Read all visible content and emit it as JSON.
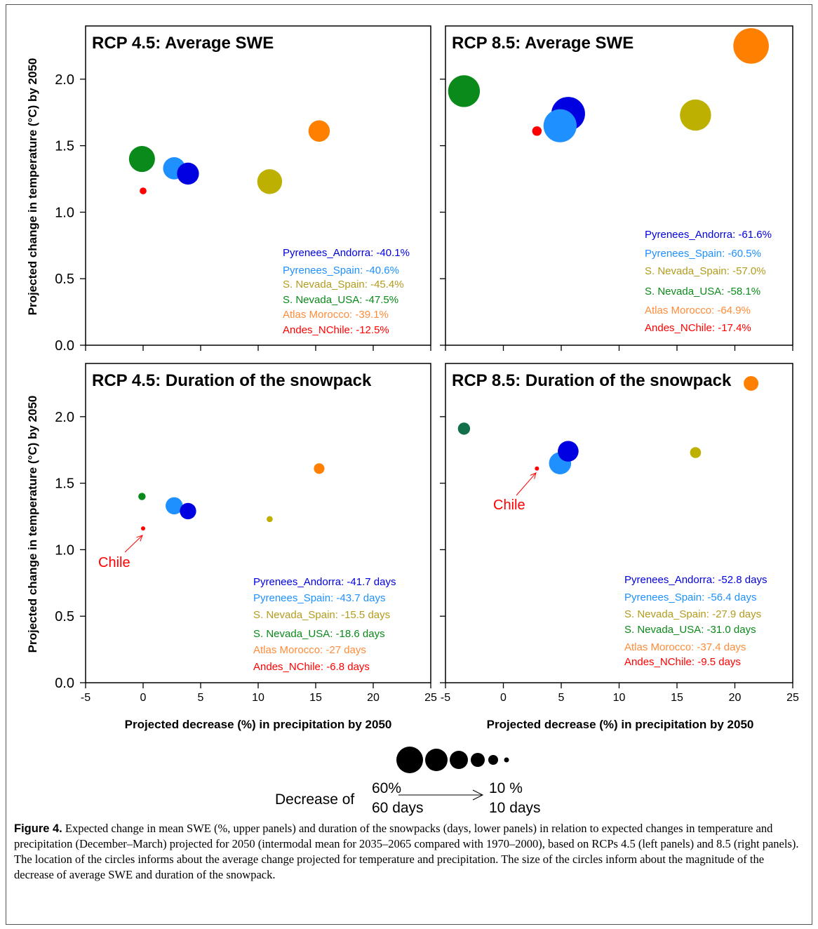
{
  "figure": {
    "y_axis_label": "Projected change in temperature (°C) by 2050",
    "x_axis_label": "Projected decrease (%) in precipitation by 2050",
    "size_legend": {
      "prefix": "Decrease of",
      "big_pct": "60%",
      "big_days": "60 days",
      "small_pct": "10 %",
      "small_days": "10 days"
    },
    "colors": {
      "Pyrenees_Andorra": "#0000e0",
      "Pyrenees_Spain": "#1e90ff",
      "S. Nevada_Spain": "#bdb000",
      "S. Nevada_USA": "#0a8a1a",
      "S. Nevada_USA_dark": "#136e4a",
      "Atlas Morocco": "#ff8000",
      "Andes_NChile": "#ff0000",
      "Atlas Morocco_text": "#ff8c3a",
      "S. Nevada_Spain_text": "#b39b1e"
    }
  },
  "chart_data": [
    {
      "type": "scatter",
      "title": "RCP 4.5: Average SWE",
      "xlim": [
        -5,
        25
      ],
      "ylim": [
        0,
        2.4
      ],
      "xticks": [
        "-5",
        "0",
        "5",
        "10",
        "15",
        "20",
        "25"
      ],
      "yticks": [
        "0.0",
        "0.5",
        "1.0",
        "1.5",
        "2.0"
      ],
      "points": [
        {
          "name": "Pyrenees_Andorra",
          "x": 3.9,
          "y": 1.29,
          "size": 40.1,
          "label": "Pyrenees_Andorra: -40.1%"
        },
        {
          "name": "Pyrenees_Spain",
          "x": 2.7,
          "y": 1.33,
          "size": 40.6,
          "label": "Pyrenees_Spain: -40.6%"
        },
        {
          "name": "S. Nevada_Spain",
          "x": 11.0,
          "y": 1.23,
          "size": 45.4,
          "label": "S. Nevada_Spain: -45.4%"
        },
        {
          "name": "S. Nevada_USA",
          "x": -0.1,
          "y": 1.4,
          "size": 47.5,
          "label": "S. Nevada_USA: -47.5%"
        },
        {
          "name": "Atlas Morocco",
          "x": 15.3,
          "y": 1.61,
          "size": 39.1,
          "label": "Atlas Morocco: -39.1%"
        },
        {
          "name": "Andes_NChile",
          "x": 0.0,
          "y": 1.16,
          "size": 12.5,
          "label": "Andes_NChile: -12.5%"
        }
      ]
    },
    {
      "type": "scatter",
      "title": "RCP 8.5: Average SWE",
      "xlim": [
        -5,
        25
      ],
      "ylim": [
        0,
        2.4
      ],
      "xticks": [
        "-5",
        "0",
        "5",
        "10",
        "15",
        "20",
        "25"
      ],
      "yticks": [
        "0.0",
        "0.5",
        "1.0",
        "1.5",
        "2.0"
      ],
      "points": [
        {
          "name": "Pyrenees_Andorra",
          "x": 5.6,
          "y": 1.74,
          "size": 61.6,
          "label": "Pyrenees_Andorra: -61.6%"
        },
        {
          "name": "Pyrenees_Spain",
          "x": 4.9,
          "y": 1.65,
          "size": 60.5,
          "label": "Pyrenees_Spain: -60.5%"
        },
        {
          "name": "S. Nevada_Spain",
          "x": 16.6,
          "y": 1.73,
          "size": 57.0,
          "label": "S. Nevada_Spain: -57.0%"
        },
        {
          "name": "S. Nevada_USA",
          "x": -3.4,
          "y": 1.91,
          "size": 58.1,
          "label": "S. Nevada_USA: -58.1%"
        },
        {
          "name": "Atlas Morocco",
          "x": 21.4,
          "y": 2.25,
          "size": 64.9,
          "label": "Atlas Morocco: -64.9%"
        },
        {
          "name": "Andes_NChile",
          "x": 2.9,
          "y": 1.61,
          "size": 17.4,
          "label": "Andes_NChile: -17.4%"
        }
      ]
    },
    {
      "type": "scatter",
      "title": "RCP 4.5: Duration of the snowpack",
      "xlim": [
        -5,
        25
      ],
      "ylim": [
        0,
        2.4
      ],
      "xticks": [
        "-5",
        "0",
        "5",
        "10",
        "15",
        "20",
        "25"
      ],
      "yticks": [
        "0.0",
        "0.5",
        "1.0",
        "1.5",
        "2.0"
      ],
      "annotation": "Chile",
      "points": [
        {
          "name": "Pyrenees_Andorra",
          "x": 3.9,
          "y": 1.29,
          "size": 41.7,
          "label": "Pyrenees_Andorra: -41.7 days"
        },
        {
          "name": "Pyrenees_Spain",
          "x": 2.7,
          "y": 1.33,
          "size": 43.7,
          "label": "Pyrenees_Spain: -43.7 days"
        },
        {
          "name": "S. Nevada_Spain",
          "x": 11.0,
          "y": 1.23,
          "size": 15.5,
          "label": "S. Nevada_Spain: -15.5 days"
        },
        {
          "name": "S. Nevada_USA",
          "x": -0.1,
          "y": 1.4,
          "size": 18.6,
          "label": "S. Nevada_USA: -18.6 days"
        },
        {
          "name": "Atlas Morocco",
          "x": 15.3,
          "y": 1.61,
          "size": 27,
          "label": "Atlas Morocco: -27 days"
        },
        {
          "name": "Andes_NChile",
          "x": 0.0,
          "y": 1.16,
          "size": 6.8,
          "label": "Andes_NChile: -6.8 days"
        }
      ]
    },
    {
      "type": "scatter",
      "title": "RCP 8.5: Duration of the snowpack",
      "xlim": [
        -5,
        25
      ],
      "ylim": [
        0,
        2.4
      ],
      "xticks": [
        "-5",
        "0",
        "5",
        "10",
        "15",
        "20",
        "25"
      ],
      "yticks": [
        "0.0",
        "0.5",
        "1.0",
        "1.5",
        "2.0"
      ],
      "annotation": "Chile",
      "points": [
        {
          "name": "Pyrenees_Andorra",
          "x": 5.6,
          "y": 1.74,
          "size": 52.8,
          "label": "Pyrenees_Andorra: -52.8 days"
        },
        {
          "name": "Pyrenees_Spain",
          "x": 4.9,
          "y": 1.65,
          "size": 56.4,
          "label": "Pyrenees_Spain: -56.4 days"
        },
        {
          "name": "S. Nevada_Spain",
          "x": 16.6,
          "y": 1.73,
          "size": 27.9,
          "label": "S. Nevada_Spain: -27.9 days"
        },
        {
          "name": "S. Nevada_USA",
          "x": -3.4,
          "y": 1.91,
          "size": 31.0,
          "label": "S. Nevada_USA: -31.0 days"
        },
        {
          "name": "Atlas Morocco",
          "x": 21.4,
          "y": 2.25,
          "size": 37.4,
          "label": "Atlas Morocco: -37.4 days"
        },
        {
          "name": "Andes_NChile",
          "x": 2.9,
          "y": 1.61,
          "size": 9.5,
          "label": "Andes_NChile: -9.5 days"
        }
      ]
    }
  ],
  "caption": {
    "label": "Figure 4.",
    "text": "Expected change in mean SWE (%, upper panels) and duration of the snowpacks (days, lower panels) in relation to expected changes in temperature and precipitation (December–March) projected for 2050 (intermodal mean for 2035–2065 compared with 1970–2000), based on RCPs 4.5 (left panels) and 8.5 (right panels). The location of the circles informs about the average change projected for temperature and precipitation. The size of the circles inform about the magnitude of the decrease of average SWE and duration of the snowpack."
  }
}
